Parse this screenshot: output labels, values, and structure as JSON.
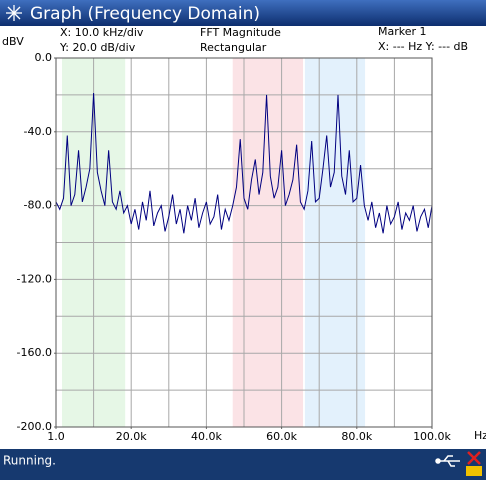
{
  "window": {
    "title": "Graph (Frequency Domain)",
    "status": "Running."
  },
  "info": {
    "xdiv": "X: 10.0 kHz/div",
    "ydiv": "Y: 20.0 dB/div",
    "mode": "FFT Magnitude",
    "window": "Rectangular",
    "marker": "Marker 1",
    "marker_readout": "X: --- Hz Y: --- dB"
  },
  "chart_data": {
    "type": "line",
    "ylabel": "dBV",
    "xlabel": "Hz",
    "color": "#000080",
    "grid": true,
    "xlim": [
      1,
      100000
    ],
    "ylim": [
      -200,
      0
    ],
    "xticks": [
      {
        "value": 1,
        "label": "1.0"
      },
      {
        "value": 20000,
        "label": "20.0k"
      },
      {
        "value": 40000,
        "label": "40.0k"
      },
      {
        "value": 60000,
        "label": "60.0k"
      },
      {
        "value": 80000,
        "label": "80.0k"
      },
      {
        "value": 100000,
        "label": "100.0k"
      }
    ],
    "yticks": [
      {
        "value": 0,
        "label": "0.0"
      },
      {
        "value": -40,
        "label": "-40.0"
      },
      {
        "value": -80,
        "label": "-80.0"
      },
      {
        "value": -120,
        "label": "-120.0"
      },
      {
        "value": -160,
        "label": "-160.0"
      },
      {
        "value": -200,
        "label": "-200.0"
      }
    ],
    "xgrid": [
      1,
      10000,
      20000,
      30000,
      40000,
      50000,
      60000,
      70000,
      80000,
      90000,
      100000
    ],
    "ygrid": [
      0,
      -20,
      -40,
      -60,
      -80,
      -100,
      -120,
      -140,
      -160,
      -180,
      -200
    ],
    "bands": [
      {
        "start": 1600,
        "end": 18400,
        "color": "#e6f7e6"
      },
      {
        "start": 47000,
        "end": 65700,
        "color": "#fbe3e6"
      },
      {
        "start": 66200,
        "end": 82200,
        "color": "#e3f1fc"
      }
    ],
    "x": [
      1,
      1000,
      2000,
      3000,
      4000,
      5000,
      6000,
      7000,
      8000,
      9000,
      10000,
      11000,
      12000,
      13000,
      14000,
      15000,
      16000,
      17000,
      18000,
      19000,
      20000,
      21000,
      22000,
      23000,
      24000,
      25000,
      26000,
      27000,
      28000,
      29000,
      30000,
      31000,
      32000,
      33000,
      34000,
      35000,
      36000,
      37000,
      38000,
      39000,
      40000,
      41000,
      42000,
      43000,
      44000,
      45000,
      46000,
      47000,
      48000,
      49000,
      50000,
      51000,
      52000,
      53000,
      54000,
      55000,
      56000,
      57000,
      58000,
      59000,
      60000,
      61000,
      62000,
      63000,
      64000,
      65000,
      66000,
      67000,
      68000,
      69000,
      70000,
      71000,
      72000,
      73000,
      74000,
      75000,
      76000,
      77000,
      78000,
      79000,
      80000,
      81000,
      82000,
      83000,
      84000,
      85000,
      86000,
      87000,
      88000,
      89000,
      90000,
      91000,
      92000,
      93000,
      94000,
      95000,
      96000,
      97000,
      98000,
      99000,
      100000
    ],
    "values": [
      -78,
      -82,
      -76,
      -42,
      -80,
      -74,
      -50,
      -78,
      -70,
      -60,
      -19,
      -62,
      -72,
      -80,
      -50,
      -78,
      -82,
      -72,
      -84,
      -80,
      -90,
      -82,
      -93,
      -78,
      -88,
      -72,
      -91,
      -84,
      -80,
      -94,
      -86,
      -74,
      -90,
      -82,
      -95,
      -80,
      -88,
      -76,
      -92,
      -84,
      -78,
      -90,
      -86,
      -74,
      -93,
      -82,
      -88,
      -80,
      -70,
      -44,
      -76,
      -82,
      -66,
      -55,
      -74,
      -62,
      -20,
      -64,
      -76,
      -70,
      -50,
      -80,
      -74,
      -66,
      -47,
      -78,
      -82,
      -72,
      -45,
      -78,
      -76,
      -60,
      -42,
      -70,
      -62,
      -20,
      -64,
      -74,
      -50,
      -78,
      -76,
      -58,
      -80,
      -88,
      -78,
      -92,
      -84,
      -95,
      -80,
      -90,
      -86,
      -78,
      -93,
      -84,
      -88,
      -80,
      -94,
      -86,
      -82,
      -92,
      -80
    ]
  }
}
